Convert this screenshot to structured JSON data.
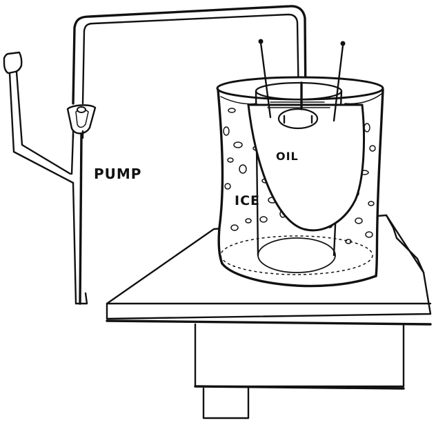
{
  "labels": {
    "pump": "PUMP",
    "ice": "ICE",
    "oil": "OIL"
  },
  "colors": {
    "ink": "#111111",
    "paper": "#ffffff"
  }
}
